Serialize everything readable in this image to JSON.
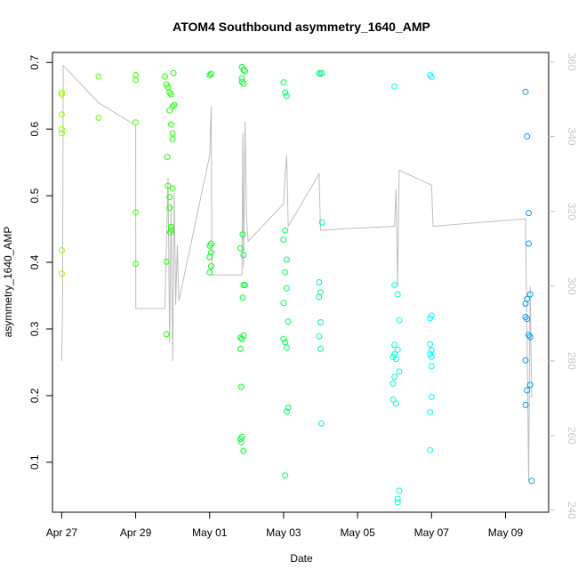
{
  "chart_data": {
    "type": "scatter",
    "title": "ATOM4 Southbound asymmetry_1640_AMP",
    "xlabel": "Date",
    "ylabel": "asymmetry_1640_AMP",
    "xlim": [
      "2021-04-26T18:00",
      "2021-05-10T04:00"
    ],
    "ylim": [
      0.025,
      0.715
    ],
    "x_ticks": [
      {
        "date": "2021-04-27",
        "label": "Apr 27"
      },
      {
        "date": "2021-04-29",
        "label": "Apr 29"
      },
      {
        "date": "2021-05-01",
        "label": "May 01"
      },
      {
        "date": "2021-05-03",
        "label": "May 03"
      },
      {
        "date": "2021-05-05",
        "label": "May 05"
      },
      {
        "date": "2021-05-07",
        "label": "May 07"
      },
      {
        "date": "2021-05-09",
        "label": "May 09"
      }
    ],
    "y_ticks": [
      0.1,
      0.2,
      0.3,
      0.4,
      0.5,
      0.6,
      0.7
    ],
    "y2_ticks": [
      240,
      260,
      280,
      300,
      320,
      340,
      360
    ],
    "y2lim": [
      239.5,
      362.5
    ],
    "grid": false,
    "point_color_hue_range": [
      0.23,
      0.58
    ],
    "points": [
      {
        "x": "2021-04-27T00:00",
        "y": 0.652
      },
      {
        "x": "2021-04-27T00:02",
        "y": 0.655
      },
      {
        "x": "2021-04-27T00:00",
        "y": 0.622
      },
      {
        "x": "2021-04-27T00:01",
        "y": 0.6
      },
      {
        "x": "2021-04-27T00:02",
        "y": 0.594
      },
      {
        "x": "2021-04-27T00:03",
        "y": 0.418
      },
      {
        "x": "2021-04-27T00:04",
        "y": 0.383
      },
      {
        "x": "2021-04-28T00:00",
        "y": 0.679
      },
      {
        "x": "2021-04-28T00:00",
        "y": 0.617
      },
      {
        "x": "2021-04-29T00:00",
        "y": 0.681
      },
      {
        "x": "2021-04-29T00:00",
        "y": 0.674
      },
      {
        "x": "2021-04-29T00:00",
        "y": 0.61
      },
      {
        "x": "2021-04-29T00:05",
        "y": 0.475
      },
      {
        "x": "2021-04-29T00:05",
        "y": 0.398
      },
      {
        "x": "2021-04-29T19:00",
        "y": 0.679
      },
      {
        "x": "2021-04-29T20:00",
        "y": 0.667
      },
      {
        "x": "2021-04-29T21:00",
        "y": 0.663
      },
      {
        "x": "2021-04-29T22:00",
        "y": 0.655
      },
      {
        "x": "2021-04-29T23:00",
        "y": 0.652
      },
      {
        "x": "2021-04-30T00:30",
        "y": 0.684
      },
      {
        "x": "2021-04-30T00:00",
        "y": 0.634
      },
      {
        "x": "2021-04-30T01:00",
        "y": 0.636
      },
      {
        "x": "2021-04-29T22:00",
        "y": 0.628
      },
      {
        "x": "2021-04-29T23:00",
        "y": 0.607
      },
      {
        "x": "2021-04-30T00:00",
        "y": 0.594
      },
      {
        "x": "2021-04-30T00:00",
        "y": 0.585
      },
      {
        "x": "2021-04-29T20:30",
        "y": 0.558
      },
      {
        "x": "2021-04-29T21:00",
        "y": 0.515
      },
      {
        "x": "2021-04-29T22:00",
        "y": 0.498
      },
      {
        "x": "2021-04-30T00:00",
        "y": 0.511
      },
      {
        "x": "2021-04-29T22:00",
        "y": 0.482
      },
      {
        "x": "2021-04-29T23:00",
        "y": 0.453
      },
      {
        "x": "2021-04-29T23:00",
        "y": 0.449
      },
      {
        "x": "2021-04-29T22:30",
        "y": 0.445
      },
      {
        "x": "2021-04-29T20:00",
        "y": 0.401
      },
      {
        "x": "2021-04-29T20:00",
        "y": 0.292
      },
      {
        "x": "2021-05-01T00:00",
        "y": 0.681
      },
      {
        "x": "2021-05-01T01:00",
        "y": 0.683
      },
      {
        "x": "2021-05-01T00:00",
        "y": 0.425
      },
      {
        "x": "2021-05-01T01:00",
        "y": 0.428
      },
      {
        "x": "2021-05-01T01:00",
        "y": 0.415
      },
      {
        "x": "2021-05-01T00:00",
        "y": 0.408
      },
      {
        "x": "2021-05-01T01:00",
        "y": 0.394
      },
      {
        "x": "2021-05-01T00:00",
        "y": 0.385
      },
      {
        "x": "2021-05-01T21:00",
        "y": 0.693
      },
      {
        "x": "2021-05-01T22:00",
        "y": 0.689
      },
      {
        "x": "2021-05-01T23:00",
        "y": 0.687
      },
      {
        "x": "2021-05-01T21:00",
        "y": 0.676
      },
      {
        "x": "2021-05-01T21:00",
        "y": 0.671
      },
      {
        "x": "2021-05-01T22:00",
        "y": 0.668
      },
      {
        "x": "2021-05-01T21:30",
        "y": 0.442
      },
      {
        "x": "2021-05-01T20:00",
        "y": 0.421
      },
      {
        "x": "2021-05-01T22:00",
        "y": 0.411
      },
      {
        "x": "2021-05-01T23:00",
        "y": 0.366
      },
      {
        "x": "2021-05-01T22:00",
        "y": 0.366
      },
      {
        "x": "2021-05-01T21:30",
        "y": 0.347
      },
      {
        "x": "2021-05-01T20:00",
        "y": 0.287
      },
      {
        "x": "2021-05-01T22:00",
        "y": 0.29
      },
      {
        "x": "2021-05-01T21:00",
        "y": 0.285
      },
      {
        "x": "2021-05-01T20:00",
        "y": 0.27
      },
      {
        "x": "2021-05-01T20:30",
        "y": 0.213
      },
      {
        "x": "2021-05-01T20:00",
        "y": 0.135
      },
      {
        "x": "2021-05-01T21:00",
        "y": 0.138
      },
      {
        "x": "2021-05-01T20:30",
        "y": 0.13
      },
      {
        "x": "2021-05-01T22:00",
        "y": 0.117
      },
      {
        "x": "2021-05-03T00:00",
        "y": 0.67
      },
      {
        "x": "2021-05-03T01:00",
        "y": 0.655
      },
      {
        "x": "2021-05-03T02:00",
        "y": 0.65
      },
      {
        "x": "2021-05-03T00:00",
        "y": 0.434
      },
      {
        "x": "2021-05-03T01:00",
        "y": 0.448
      },
      {
        "x": "2021-05-03T02:00",
        "y": 0.404
      },
      {
        "x": "2021-05-03T01:00",
        "y": 0.385
      },
      {
        "x": "2021-05-03T02:00",
        "y": 0.361
      },
      {
        "x": "2021-05-03T00:00",
        "y": 0.339
      },
      {
        "x": "2021-05-03T03:00",
        "y": 0.311
      },
      {
        "x": "2021-05-03T00:00",
        "y": 0.285
      },
      {
        "x": "2021-05-03T01:00",
        "y": 0.28
      },
      {
        "x": "2021-05-03T02:00",
        "y": 0.272
      },
      {
        "x": "2021-05-03T03:00",
        "y": 0.182
      },
      {
        "x": "2021-05-03T02:00",
        "y": 0.176
      },
      {
        "x": "2021-05-03T01:00",
        "y": 0.08
      },
      {
        "x": "2021-05-03T23:00",
        "y": 0.684
      },
      {
        "x": "2021-05-04T00:00",
        "y": 0.683
      },
      {
        "x": "2021-05-04T01:00",
        "y": 0.684
      },
      {
        "x": "2021-05-04T01:00",
        "y": 0.46
      },
      {
        "x": "2021-05-03T23:00",
        "y": 0.37
      },
      {
        "x": "2021-05-04T00:00",
        "y": 0.355
      },
      {
        "x": "2021-05-03T23:00",
        "y": 0.348
      },
      {
        "x": "2021-05-04T00:00",
        "y": 0.31
      },
      {
        "x": "2021-05-03T23:00",
        "y": 0.289
      },
      {
        "x": "2021-05-04T00:00",
        "y": 0.27
      },
      {
        "x": "2021-05-04T00:30",
        "y": 0.158
      },
      {
        "x": "2021-05-06T00:00",
        "y": 0.664
      },
      {
        "x": "2021-05-06T00:00",
        "y": 0.366
      },
      {
        "x": "2021-05-06T02:00",
        "y": 0.352
      },
      {
        "x": "2021-05-06T03:00",
        "y": 0.313
      },
      {
        "x": "2021-05-06T00:00",
        "y": 0.276
      },
      {
        "x": "2021-05-06T02:00",
        "y": 0.269
      },
      {
        "x": "2021-05-05T23:00",
        "y": 0.258
      },
      {
        "x": "2021-05-06T00:00",
        "y": 0.262
      },
      {
        "x": "2021-05-06T01:00",
        "y": 0.255
      },
      {
        "x": "2021-05-06T03:00",
        "y": 0.236
      },
      {
        "x": "2021-05-05T23:00",
        "y": 0.218
      },
      {
        "x": "2021-05-06T00:00",
        "y": 0.228
      },
      {
        "x": "2021-05-05T23:00",
        "y": 0.194
      },
      {
        "x": "2021-05-06T01:00",
        "y": 0.188
      },
      {
        "x": "2021-05-06T03:00",
        "y": 0.057
      },
      {
        "x": "2021-05-06T02:00",
        "y": 0.045
      },
      {
        "x": "2021-05-06T02:00",
        "y": 0.04
      },
      {
        "x": "2021-05-06T23:00",
        "y": 0.681
      },
      {
        "x": "2021-05-07T00:00",
        "y": 0.678
      },
      {
        "x": "2021-05-07T00:00",
        "y": 0.32
      },
      {
        "x": "2021-05-06T23:00",
        "y": 0.316
      },
      {
        "x": "2021-05-06T23:00",
        "y": 0.277
      },
      {
        "x": "2021-05-07T00:00",
        "y": 0.268
      },
      {
        "x": "2021-05-06T23:00",
        "y": 0.262
      },
      {
        "x": "2021-05-07T00:00",
        "y": 0.258
      },
      {
        "x": "2021-05-07T00:00",
        "y": 0.244
      },
      {
        "x": "2021-05-07T00:00",
        "y": 0.198
      },
      {
        "x": "2021-05-06T23:00",
        "y": 0.175
      },
      {
        "x": "2021-05-06T23:00",
        "y": 0.118
      },
      {
        "x": "2021-05-09T13:00",
        "y": 0.656
      },
      {
        "x": "2021-05-09T14:00",
        "y": 0.589
      },
      {
        "x": "2021-05-09T15:00",
        "y": 0.474
      },
      {
        "x": "2021-05-09T15:00",
        "y": 0.428
      },
      {
        "x": "2021-05-09T16:00",
        "y": 0.352
      },
      {
        "x": "2021-05-09T14:00",
        "y": 0.345
      },
      {
        "x": "2021-05-09T13:00",
        "y": 0.338
      },
      {
        "x": "2021-05-09T13:00",
        "y": 0.318
      },
      {
        "x": "2021-05-09T14:00",
        "y": 0.315
      },
      {
        "x": "2021-05-09T15:00",
        "y": 0.291
      },
      {
        "x": "2021-05-09T16:00",
        "y": 0.288
      },
      {
        "x": "2021-05-09T13:00",
        "y": 0.253
      },
      {
        "x": "2021-05-09T16:00",
        "y": 0.216
      },
      {
        "x": "2021-05-09T14:00",
        "y": 0.208
      },
      {
        "x": "2021-05-09T13:00",
        "y": 0.186
      },
      {
        "x": "2021-05-09T17:00",
        "y": 0.072
      }
    ],
    "line_y2": [
      {
        "x": "2021-04-27T00:00",
        "y2": 280
      },
      {
        "x": "2021-04-27T00:30",
        "y2": 293
      },
      {
        "x": "2021-04-27T01:00",
        "y2": 359
      },
      {
        "x": "2021-04-28T00:00",
        "y2": 349
      },
      {
        "x": "2021-04-29T00:00",
        "y2": 343
      },
      {
        "x": "2021-04-29T00:05",
        "y2": 294
      },
      {
        "x": "2021-04-29T19:00",
        "y2": 294
      },
      {
        "x": "2021-04-29T21:00",
        "y2": 329
      },
      {
        "x": "2021-04-29T22:00",
        "y2": 285
      },
      {
        "x": "2021-04-29T23:00",
        "y2": 322
      },
      {
        "x": "2021-04-30T00:00",
        "y2": 280
      },
      {
        "x": "2021-04-30T01:00",
        "y2": 325
      },
      {
        "x": "2021-04-30T02:00",
        "y2": 295
      },
      {
        "x": "2021-04-30T03:00",
        "y2": 311
      },
      {
        "x": "2021-04-30T04:00",
        "y2": 296
      },
      {
        "x": "2021-05-01T00:00",
        "y2": 335
      },
      {
        "x": "2021-05-01T01:00",
        "y2": 348
      },
      {
        "x": "2021-05-01T01:30",
        "y2": 303
      },
      {
        "x": "2021-05-01T21:00",
        "y2": 303
      },
      {
        "x": "2021-05-01T21:30",
        "y2": 341
      },
      {
        "x": "2021-05-01T22:00",
        "y2": 305
      },
      {
        "x": "2021-05-01T23:00",
        "y2": 344
      },
      {
        "x": "2021-05-02T00:00",
        "y2": 318
      },
      {
        "x": "2021-05-02T01:00",
        "y2": 312
      },
      {
        "x": "2021-05-03T00:00",
        "y2": 322
      },
      {
        "x": "2021-05-03T01:00",
        "y2": 330
      },
      {
        "x": "2021-05-03T02:00",
        "y2": 335
      },
      {
        "x": "2021-05-03T03:00",
        "y2": 316
      },
      {
        "x": "2021-05-03T23:00",
        "y2": 330
      },
      {
        "x": "2021-05-04T00:00",
        "y2": 315
      },
      {
        "x": "2021-05-06T00:00",
        "y2": 316
      },
      {
        "x": "2021-05-06T01:00",
        "y2": 326
      },
      {
        "x": "2021-05-06T02:00",
        "y2": 300
      },
      {
        "x": "2021-05-06T03:00",
        "y2": 331
      },
      {
        "x": "2021-05-07T00:00",
        "y2": 327
      },
      {
        "x": "2021-05-07T01:00",
        "y2": 316
      },
      {
        "x": "2021-05-09T13:00",
        "y2": 318
      },
      {
        "x": "2021-05-09T14:00",
        "y2": 285
      },
      {
        "x": "2021-05-09T15:00",
        "y2": 248
      },
      {
        "x": "2021-05-09T16:00",
        "y2": 300
      },
      {
        "x": "2021-05-09T17:00",
        "y2": 270
      }
    ]
  }
}
